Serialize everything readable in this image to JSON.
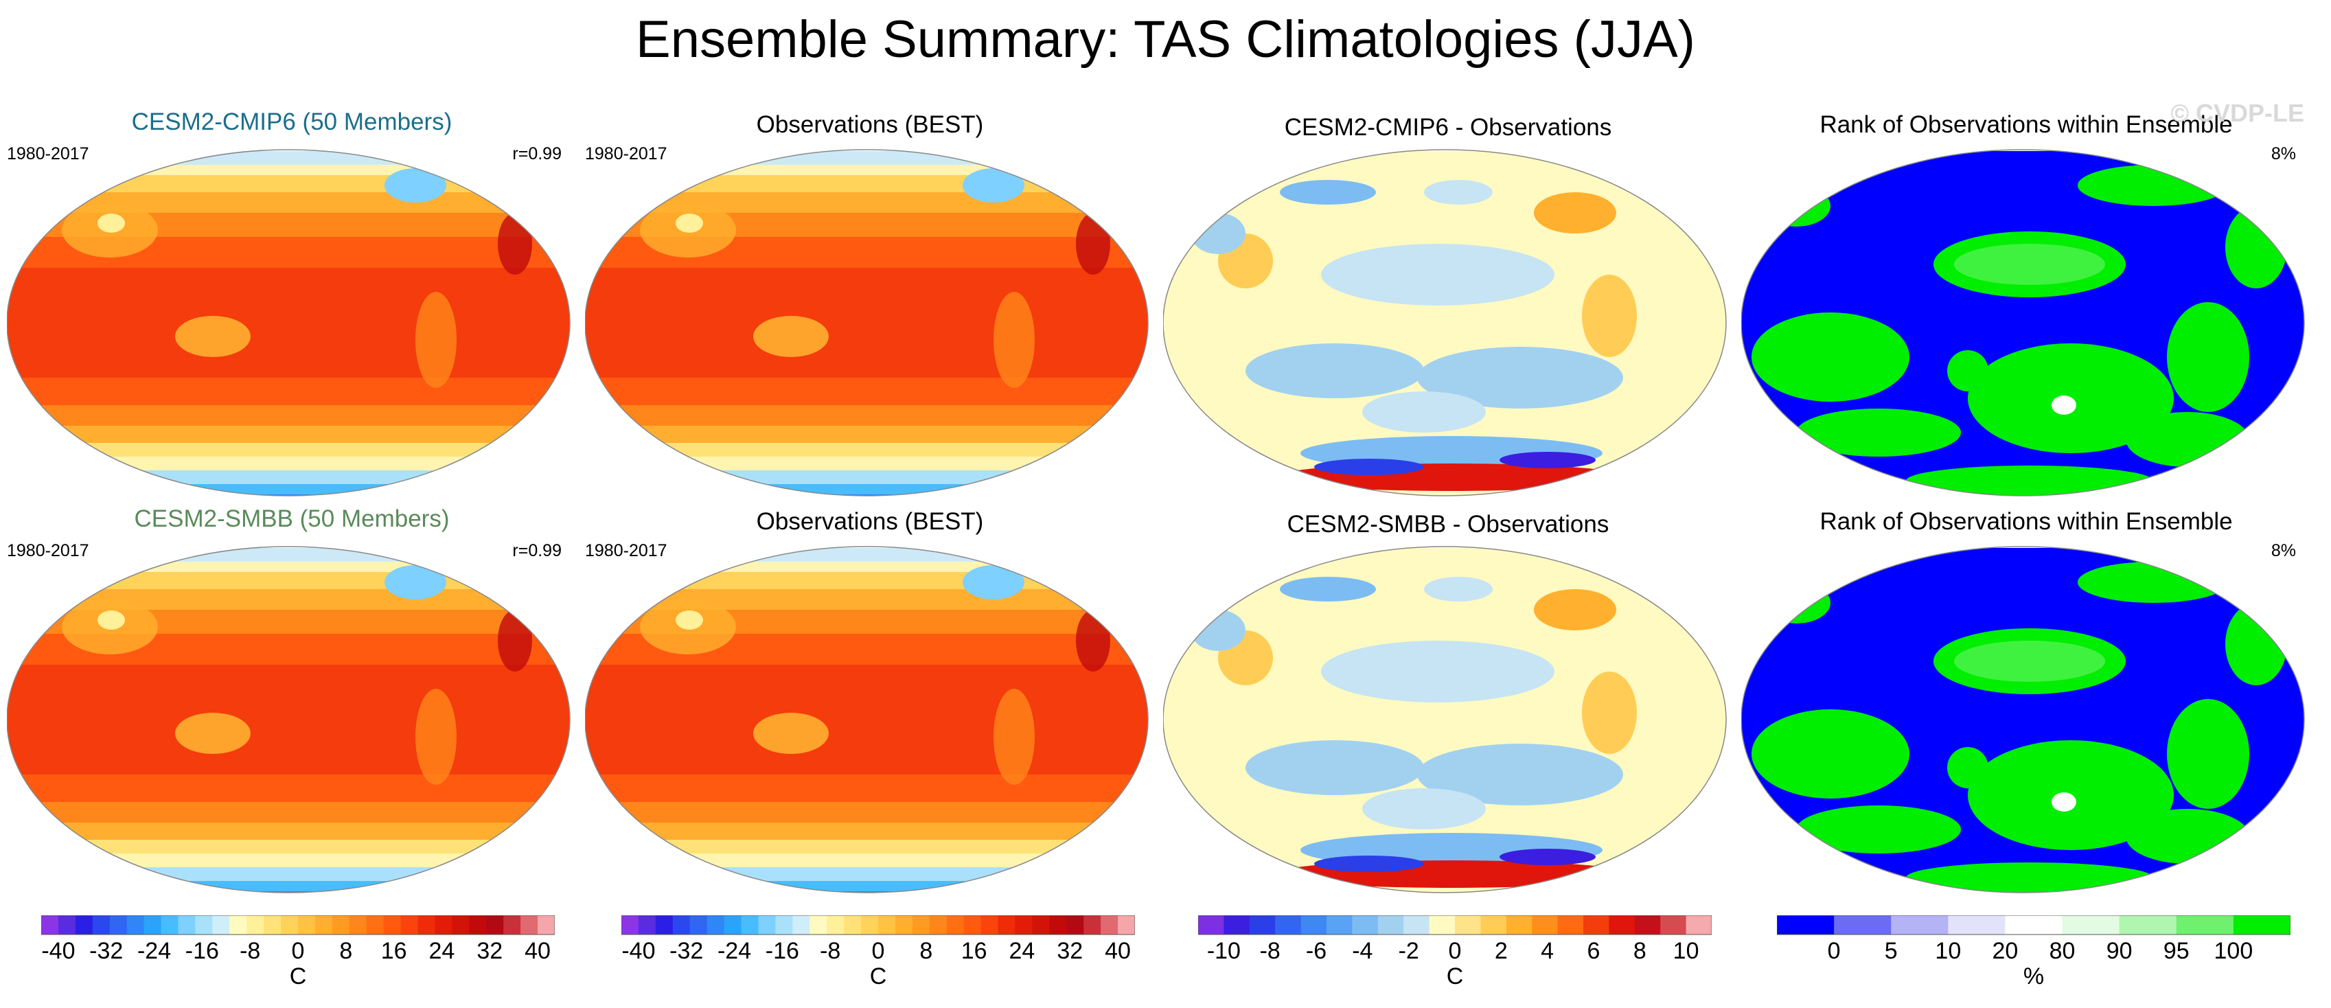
{
  "title": "Ensemble Summary: TAS Climatologies (JJA)",
  "watermark": "© CVDP-LE",
  "panels": [
    {
      "title": "CESM2-CMIP6 (50 Members)",
      "title_color": "#1b6e8c",
      "years": "1980-2017",
      "corr": "r=0.99",
      "kind": "clim"
    },
    {
      "title": "Observations (BEST)",
      "title_color": "#000000",
      "years": "1980-2017",
      "corr": "",
      "kind": "clim"
    },
    {
      "title": "CESM2-CMIP6 - Observations",
      "title_color": "#000000",
      "years": "",
      "corr": "",
      "kind": "diff"
    },
    {
      "title": "Rank of Observations within Ensemble",
      "title_color": "#000000",
      "years": "",
      "corr": "8%",
      "kind": "rank"
    },
    {
      "title": "CESM2-SMBB (50 Members)",
      "title_color": "#5a8a5a",
      "years": "1980-2017",
      "corr": "r=0.99",
      "kind": "clim"
    },
    {
      "title": "Observations (BEST)",
      "title_color": "#000000",
      "years": "1980-2017",
      "corr": "",
      "kind": "clim"
    },
    {
      "title": "CESM2-SMBB - Observations",
      "title_color": "#000000",
      "years": "",
      "corr": "",
      "kind": "diff"
    },
    {
      "title": "Rank of Observations within Ensemble",
      "title_color": "#000000",
      "years": "",
      "corr": "8%",
      "kind": "rank"
    }
  ],
  "chart_data": [
    {
      "type": "heatmap",
      "name": "climatology colorbar",
      "unit": "C",
      "tick_labels": [
        "-40",
        "-32",
        "-24",
        "-16",
        "-8",
        "0",
        "8",
        "16",
        "24",
        "32",
        "40"
      ],
      "range": [
        -40,
        40
      ],
      "colors": [
        "#8b35e6",
        "#5a2ce0",
        "#2b1ee6",
        "#2a48ee",
        "#3066f2",
        "#2f86f7",
        "#2aa3fb",
        "#47bdff",
        "#7ed0ff",
        "#a9e1fb",
        "#d0eefa",
        "#fffac0",
        "#fff09a",
        "#ffe277",
        "#ffd35a",
        "#ffc243",
        "#ffae30",
        "#ff9a23",
        "#ff861a",
        "#ff7014",
        "#ff5a10",
        "#fb430c",
        "#f02b08",
        "#e31b07",
        "#d31208",
        "#c20a0b",
        "#b10a14",
        "#c8303a",
        "#e06a70",
        "#f4a6ab"
      ]
    },
    {
      "type": "heatmap",
      "name": "difference colorbar",
      "unit": "C",
      "tick_labels": [
        "-10",
        "-8",
        "-6",
        "-4",
        "-2",
        "0",
        "2",
        "4",
        "6",
        "8",
        "10"
      ],
      "range": [
        -10,
        10
      ],
      "colors": [
        "#7d2fe4",
        "#3b1ee0",
        "#2a3fe8",
        "#3366f0",
        "#3f87f2",
        "#5aa3f4",
        "#7cbcf3",
        "#a2d1f0",
        "#c6e4f3",
        "#fffac2",
        "#ffe389",
        "#ffcd55",
        "#ffb02e",
        "#ff8f1c",
        "#ff6a12",
        "#f43c0c",
        "#e0150c",
        "#c3101a",
        "#d64b4f",
        "#f5aaae"
      ]
    },
    {
      "type": "heatmap",
      "name": "rank colorbar",
      "unit": "%",
      "tick_labels": [
        "0",
        "5",
        "10",
        "20",
        "80",
        "90",
        "95",
        "100"
      ],
      "colors": [
        "#0000ff",
        "#6b6bf6",
        "#b3b3f6",
        "#e2e2fb",
        "#ffffff",
        "#e2fbe2",
        "#b0f5b0",
        "#6ff06f",
        "#00ee00"
      ]
    }
  ]
}
